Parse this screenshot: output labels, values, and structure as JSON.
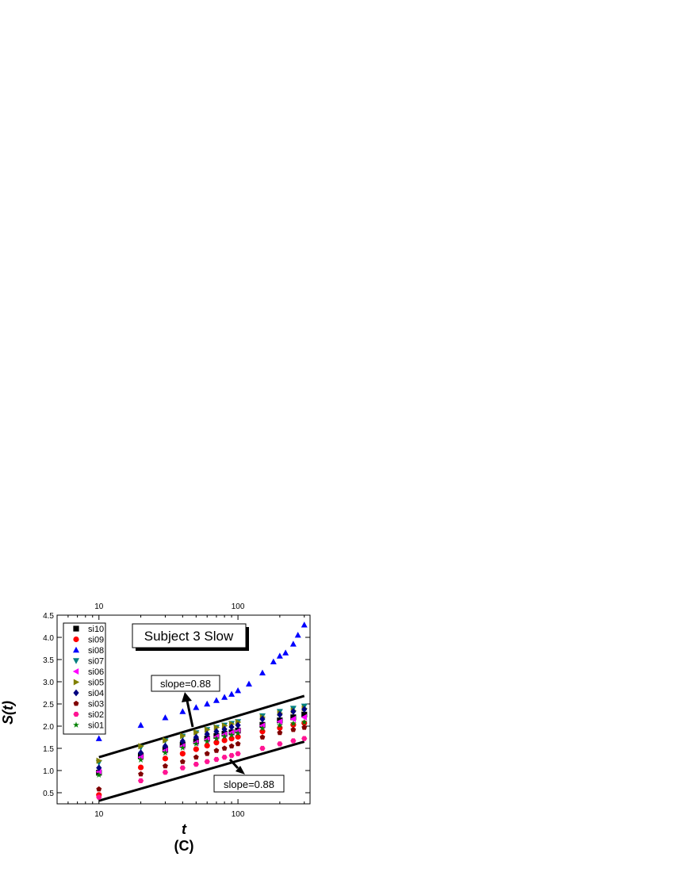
{
  "chart_data": {
    "type": "scatter",
    "title": "Subject 3 Slow",
    "xlabel": "t",
    "ylabel": "S(t)",
    "caption": "(C)",
    "x_scale": "log",
    "xlim": [
      5,
      330
    ],
    "ylim": [
      0.25,
      4.5
    ],
    "x_ticks": [
      10,
      100
    ],
    "x_tick_labels": [
      "10",
      "100"
    ],
    "top_x_ticks": [
      10,
      100
    ],
    "top_x_tick_labels": [
      "10",
      "100"
    ],
    "y_ticks": [
      0.5,
      1.0,
      1.5,
      2.0,
      2.5,
      3.0,
      3.5,
      4.0,
      4.5
    ],
    "y_tick_labels": [
      "0.5",
      "1.0",
      "1.5",
      "2.0",
      "2.5",
      "3.0",
      "3.5",
      "4.0",
      "4.5"
    ],
    "legend_position": "top-left",
    "grid": false,
    "annotations": [
      {
        "text": "slope=0.88",
        "line_from": [
          10,
          1.3
        ],
        "line_to": [
          300,
          2.68
        ]
      },
      {
        "text": "slope=0.88",
        "line_from": [
          10,
          0.32
        ],
        "line_to": [
          300,
          1.65
        ]
      }
    ],
    "series": [
      {
        "name": "si10",
        "marker": "square",
        "color": "#000000",
        "x": [
          10,
          20,
          30,
          40,
          50,
          60,
          70,
          80,
          90,
          100,
          150,
          200,
          250,
          300
        ],
        "y": [
          0.95,
          1.33,
          1.47,
          1.58,
          1.66,
          1.72,
          1.78,
          1.83,
          1.86,
          1.9,
          2.03,
          2.13,
          2.2,
          2.26
        ]
      },
      {
        "name": "si09",
        "marker": "circle",
        "color": "#ff0000",
        "x": [
          10,
          20,
          30,
          40,
          50,
          60,
          70,
          80,
          90,
          100,
          150,
          200,
          250,
          300
        ],
        "y": [
          0.45,
          1.07,
          1.27,
          1.38,
          1.48,
          1.56,
          1.63,
          1.68,
          1.72,
          1.76,
          1.88,
          1.96,
          2.03,
          2.07
        ]
      },
      {
        "name": "si08",
        "marker": "triangle-up",
        "color": "#0000ff",
        "x": [
          10,
          20,
          30,
          40,
          50,
          60,
          70,
          80,
          90,
          100,
          120,
          150,
          180,
          200,
          220,
          250,
          270,
          300
        ],
        "y": [
          1.72,
          2.02,
          2.19,
          2.33,
          2.42,
          2.5,
          2.58,
          2.65,
          2.72,
          2.8,
          2.95,
          3.2,
          3.45,
          3.58,
          3.65,
          3.85,
          4.05,
          4.28
        ]
      },
      {
        "name": "si07",
        "marker": "triangle-down",
        "color": "#008080",
        "x": [
          10,
          20,
          30,
          40,
          50,
          60,
          70,
          80,
          90,
          100,
          150,
          200,
          250,
          300
        ],
        "y": [
          1.18,
          1.52,
          1.67,
          1.77,
          1.85,
          1.92,
          1.97,
          2.02,
          2.06,
          2.1,
          2.23,
          2.33,
          2.4,
          2.45
        ]
      },
      {
        "name": "si06",
        "marker": "triangle-left",
        "color": "#ff00ff",
        "x": [
          10,
          20,
          30,
          40,
          50,
          60,
          70,
          80,
          90,
          100,
          150,
          200,
          250,
          300
        ],
        "y": [
          0.97,
          1.3,
          1.45,
          1.55,
          1.63,
          1.7,
          1.76,
          1.81,
          1.85,
          1.89,
          2.01,
          2.1,
          2.16,
          2.2
        ]
      },
      {
        "name": "si05",
        "marker": "triangle-right",
        "color": "#808000",
        "x": [
          10,
          20,
          30,
          40,
          50,
          60,
          70,
          80,
          90,
          100,
          150,
          200,
          250,
          300
        ],
        "y": [
          1.22,
          1.55,
          1.68,
          1.78,
          1.86,
          1.92,
          1.97,
          2.01,
          2.05,
          2.09,
          2.2,
          2.29,
          2.35,
          2.4
        ]
      },
      {
        "name": "si04",
        "marker": "diamond",
        "color": "#000080",
        "x": [
          10,
          20,
          30,
          40,
          50,
          60,
          70,
          80,
          90,
          100,
          150,
          200,
          250,
          300
        ],
        "y": [
          1.06,
          1.4,
          1.55,
          1.66,
          1.75,
          1.82,
          1.88,
          1.93,
          1.98,
          2.02,
          2.16,
          2.26,
          2.33,
          2.38
        ]
      },
      {
        "name": "si03",
        "marker": "pentagon",
        "color": "#800000",
        "x": [
          10,
          20,
          30,
          40,
          50,
          60,
          70,
          80,
          90,
          100,
          150,
          200,
          250,
          300
        ],
        "y": [
          0.58,
          0.92,
          1.1,
          1.2,
          1.3,
          1.38,
          1.45,
          1.5,
          1.55,
          1.6,
          1.75,
          1.85,
          1.92,
          1.97
        ]
      },
      {
        "name": "si02",
        "marker": "hexagon",
        "color": "#ff1493",
        "x": [
          10,
          20,
          30,
          40,
          50,
          60,
          70,
          80,
          90,
          100,
          150,
          200,
          250,
          300
        ],
        "y": [
          0.4,
          0.77,
          0.96,
          1.06,
          1.14,
          1.2,
          1.25,
          1.3,
          1.34,
          1.38,
          1.5,
          1.6,
          1.67,
          1.72
        ]
      },
      {
        "name": "si01",
        "marker": "star",
        "color": "#008000",
        "x": [
          10,
          20,
          30,
          40,
          50,
          60,
          70,
          80,
          90,
          100,
          150,
          200,
          250,
          300
        ],
        "y": [
          0.9,
          1.24,
          1.4,
          1.51,
          1.6,
          1.66,
          1.72,
          1.77,
          1.8,
          1.84,
          1.95,
          2.02,
          2.06,
          2.09
        ]
      }
    ]
  }
}
